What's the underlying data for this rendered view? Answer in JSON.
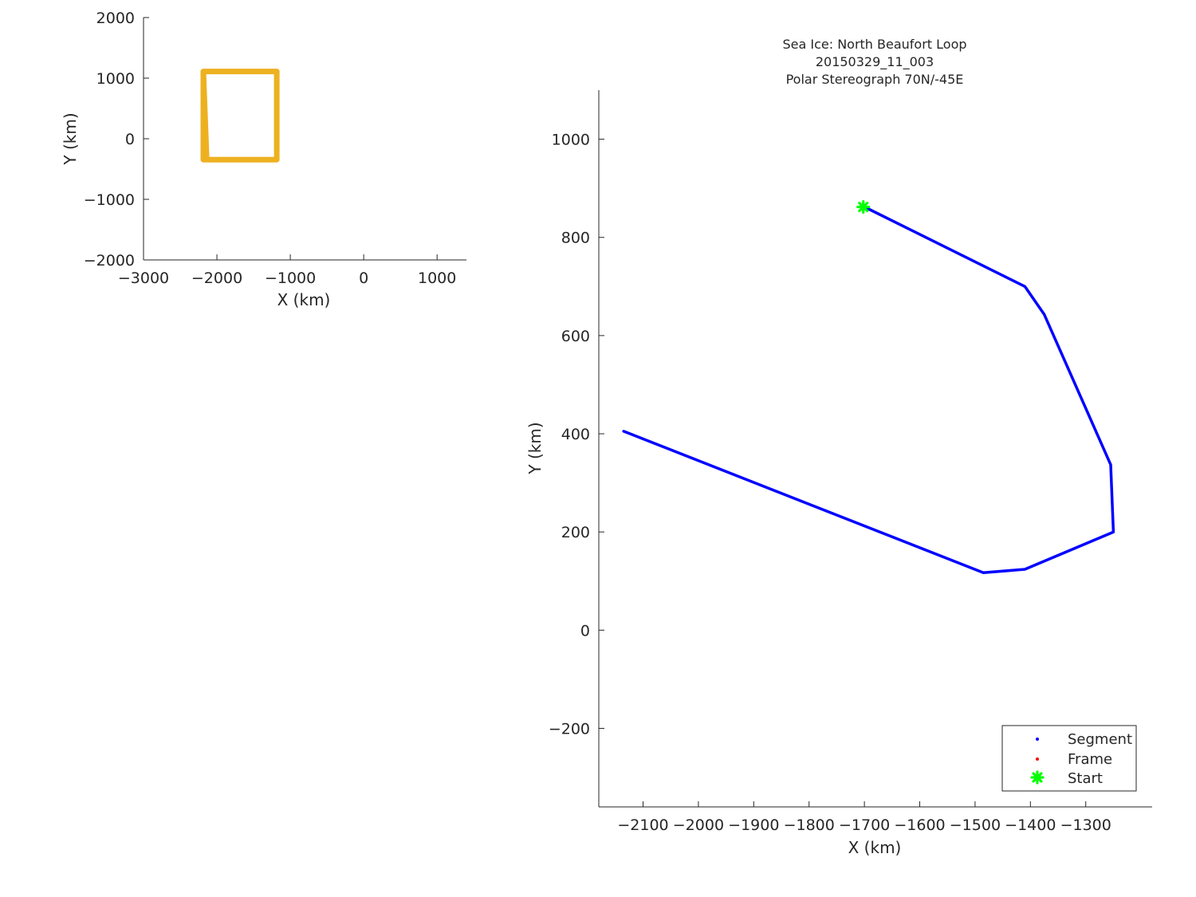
{
  "chart_data": [
    {
      "id": "overview",
      "type": "line",
      "title": "",
      "xlabel": "X (km)",
      "ylabel": "Y (km)",
      "xlim": [
        -3000,
        1400
      ],
      "ylim": [
        -2000,
        2000
      ],
      "xticks": [
        -3000,
        -2000,
        -1000,
        0,
        1000
      ],
      "xtick_labels": [
        "−3000",
        "−2000",
        "−1000",
        "0",
        "1000"
      ],
      "yticks": [
        -2000,
        -1000,
        0,
        1000,
        2000
      ],
      "ytick_labels": [
        "−2000",
        "−1000",
        "0",
        "1000",
        "2000"
      ],
      "grid": false,
      "series": [
        {
          "color": "#EDB120",
          "x": [
            -2185,
            -1185,
            -1185,
            -2185,
            -2185,
            -2140,
            -1185
          ],
          "y": [
            1110,
            1110,
            -345,
            -345,
            1110,
            -345,
            -345
          ]
        }
      ]
    },
    {
      "id": "detail",
      "type": "line",
      "title": [
        "Sea Ice: North Beaufort Loop",
        "20150329_11_003",
        "Polar Stereograph 70N/-45E"
      ],
      "xlabel": "X (km)",
      "ylabel": "Y (km)",
      "xlim": [
        -2180,
        -1180
      ],
      "ylim": [
        -360,
        1100
      ],
      "xticks": [
        -2100,
        -2000,
        -1900,
        -1800,
        -1700,
        -1600,
        -1500,
        -1400,
        -1300
      ],
      "xtick_labels": [
        "−2100",
        "−2000",
        "−1900",
        "−1800",
        "−1700",
        "−1600",
        "−1500",
        "−1400",
        "−1300"
      ],
      "yticks": [
        -200,
        0,
        200,
        400,
        600,
        800,
        1000
      ],
      "ytick_labels": [
        "−200",
        "0",
        "200",
        "400",
        "600",
        "800",
        "1000"
      ],
      "grid": false,
      "series": [
        {
          "name": "Segment",
          "color": "#0000FF",
          "x": [
            -1700,
            -1410,
            -1375,
            -1255,
            -1250,
            -1410,
            -1485,
            -2135
          ],
          "y": [
            862,
            700,
            643,
            337,
            200,
            124,
            117,
            405
          ]
        },
        {
          "name": "Frame",
          "color": "#FF0000",
          "x": [],
          "y": []
        },
        {
          "name": "Start",
          "color": "#00FF00",
          "marker": "star",
          "x": [
            -1702
          ],
          "y": [
            862
          ]
        }
      ],
      "legend": {
        "location": "bottom-right",
        "entries": [
          {
            "label": "Segment",
            "color": "#0000FF",
            "marker": "dot"
          },
          {
            "label": "Frame",
            "color": "#FF0000",
            "marker": "dot"
          },
          {
            "label": "Start",
            "color": "#00FF00",
            "marker": "star"
          }
        ]
      }
    }
  ]
}
